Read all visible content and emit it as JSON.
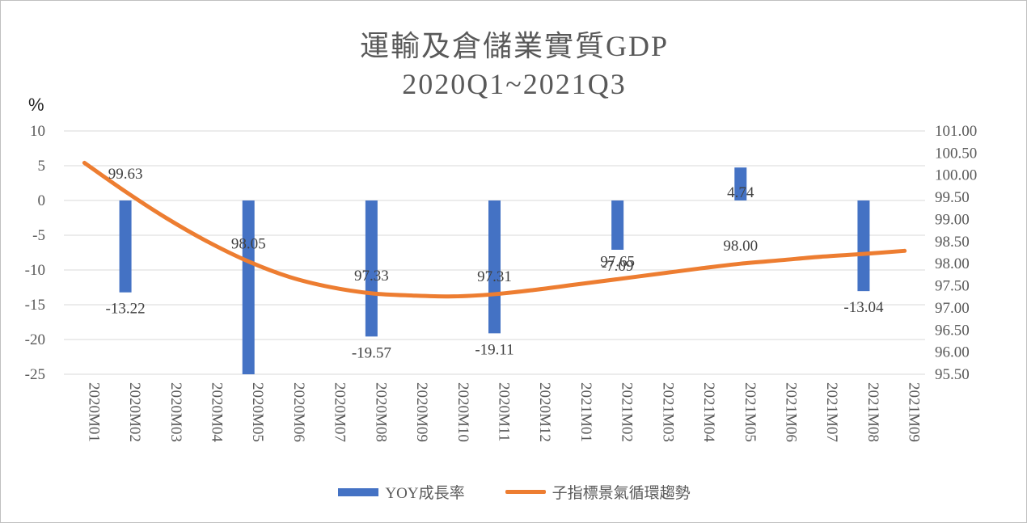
{
  "title_line1": "運輸及倉儲業實質GDP",
  "title_line2": "2020Q1~2021Q3",
  "unit_label": "%",
  "colors": {
    "bar": "#4472c4",
    "line": "#ed7d31",
    "grid": "#d9d9d9"
  },
  "chart_data": {
    "type": "bar+line",
    "categories": [
      "2020M01",
      "2020M02",
      "2020M03",
      "2020M04",
      "2020M05",
      "2020M06",
      "2020M07",
      "2020M08",
      "2020M09",
      "2020M10",
      "2020M11",
      "2020M12",
      "2021M01",
      "2021M02",
      "2021M03",
      "2021M04",
      "2021M05",
      "2021M06",
      "2021M07",
      "2021M08",
      "2021M09"
    ],
    "left_axis": {
      "min": -25,
      "max": 10,
      "ticks": [
        "10",
        "5",
        "0",
        "-5",
        "-10",
        "-15",
        "-20",
        "-25"
      ]
    },
    "right_axis": {
      "min": 95.5,
      "max": 101.0,
      "ticks": [
        "101.00",
        "100.50",
        "100.00",
        "99.50",
        "99.00",
        "98.50",
        "98.00",
        "97.50",
        "97.00",
        "96.50",
        "96.00",
        "95.50"
      ]
    },
    "series": [
      {
        "name": "YOY成長率",
        "type": "bar",
        "axis": "left",
        "values": [
          null,
          -13.22,
          null,
          null,
          -25.5,
          null,
          null,
          -19.57,
          null,
          null,
          -19.11,
          null,
          null,
          -7.09,
          null,
          null,
          4.74,
          null,
          null,
          -13.04,
          null
        ],
        "labels": [
          null,
          "-13.22",
          null,
          null,
          null,
          null,
          null,
          "-19.57",
          null,
          null,
          "-19.11",
          null,
          null,
          "-7.09",
          null,
          null,
          "4.74",
          null,
          null,
          "-13.04",
          null
        ]
      },
      {
        "name": "子指標景氣循環趨勢",
        "type": "line",
        "axis": "right",
        "values": [
          100.28,
          99.63,
          99.03,
          98.5,
          98.05,
          97.7,
          97.47,
          97.33,
          97.28,
          97.26,
          97.31,
          97.41,
          97.53,
          97.65,
          97.77,
          97.89,
          98.0,
          98.08,
          98.16,
          98.22,
          98.29
        ],
        "labels": [
          null,
          "99.63",
          null,
          null,
          "98.05",
          null,
          null,
          "97.33",
          null,
          null,
          "97.31",
          null,
          null,
          "97.65",
          null,
          null,
          "98.00",
          null,
          null,
          null,
          null
        ]
      }
    ],
    "grid": true,
    "legend": "bottom"
  }
}
